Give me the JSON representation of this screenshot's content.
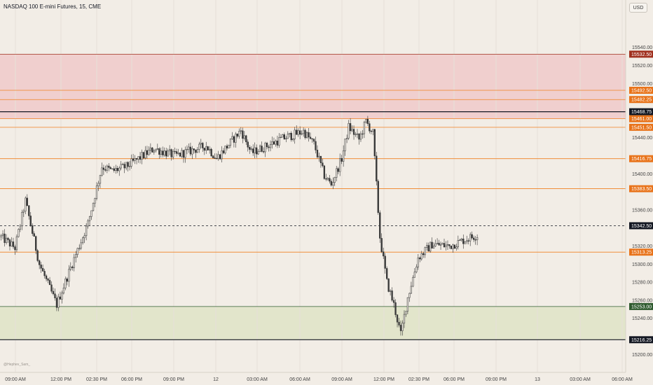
{
  "header": {
    "title": "NASDAQ 100 E-mini Futures, 15, CME",
    "currency": "USD",
    "watermark": "@Hephev_Sam_"
  },
  "colors": {
    "background": "#f2ede6",
    "supply_zone": "#f0c9c9",
    "demand_zone": "#dfe3c5",
    "orange_line": "#f08020",
    "orange_badge": "#e8731a",
    "supply_badge": "#a0301e",
    "demand_badge": "#2e5a2e",
    "black": "#131722",
    "candle_up": "#f2ede6",
    "candle_down": "#3a3a3a"
  },
  "chart_data": {
    "type": "candlestick",
    "title": "NASDAQ 100 E-mini Futures, 15, CME",
    "ylim": [
      15195,
      15550
    ],
    "y_ticks": [
      15200,
      15220,
      15240,
      15260,
      15280,
      15300,
      15320,
      15340,
      15360,
      15380,
      15400,
      15420,
      15440,
      15460,
      15480,
      15500,
      15520,
      15540
    ],
    "x_ticks": [
      "09:00 AM",
      "12:00 PM",
      "02:30 PM",
      "06:00 PM",
      "09:00 PM",
      "12",
      "03:00 AM",
      "06:00 AM",
      "09:00 AM",
      "12:00 PM",
      "02:30 PM",
      "06:00 PM",
      "09:00 PM",
      "13",
      "03:00 AM",
      "06:00 AM"
    ],
    "current_price": 15342.5,
    "zones": [
      {
        "kind": "supply",
        "from": 15461.0,
        "to": 15532.5
      },
      {
        "kind": "demand",
        "from": 15216.25,
        "to": 15253.0
      }
    ],
    "levels": [
      {
        "price": 15532.5,
        "label": "15532.50",
        "style": "supply"
      },
      {
        "price": 15492.5,
        "label": "15492.50",
        "style": "orange"
      },
      {
        "price": 15482.25,
        "label": "15482.25",
        "style": "orange"
      },
      {
        "price": 15468.75,
        "label": "15468.75",
        "style": "black"
      },
      {
        "price": 15461.0,
        "label": "15461.00",
        "style": "orange"
      },
      {
        "price": 15451.5,
        "label": "15451.50",
        "style": "orange"
      },
      {
        "price": 15416.75,
        "label": "15416.75",
        "style": "orange"
      },
      {
        "price": 15383.5,
        "label": "15383.50",
        "style": "orange"
      },
      {
        "price": 15342.5,
        "label": "15342.50",
        "style": "current"
      },
      {
        "price": 15313.25,
        "label": "15313.25",
        "style": "orange"
      },
      {
        "price": 15253.0,
        "label": "15253.00",
        "style": "demand"
      },
      {
        "price": 15216.25,
        "label": "15216.25",
        "style": "black"
      }
    ],
    "close_anchors": [
      [
        0,
        15330
      ],
      [
        8,
        15318
      ],
      [
        14,
        15370
      ],
      [
        22,
        15300
      ],
      [
        32,
        15255
      ],
      [
        40,
        15296
      ],
      [
        50,
        15345
      ],
      [
        58,
        15408
      ],
      [
        64,
        15403
      ],
      [
        72,
        15408
      ],
      [
        88,
        15428
      ],
      [
        100,
        15420
      ],
      [
        118,
        15431
      ],
      [
        124,
        15417
      ],
      [
        138,
        15448
      ],
      [
        144,
        15423
      ],
      [
        162,
        15439
      ],
      [
        174,
        15447
      ],
      [
        180,
        15433
      ],
      [
        186,
        15398
      ],
      [
        190,
        15388
      ],
      [
        196,
        15417
      ],
      [
        200,
        15452
      ],
      [
        206,
        15438
      ],
      [
        210,
        15458
      ],
      [
        214,
        15445
      ],
      [
        218,
        15330
      ],
      [
        222,
        15280
      ],
      [
        226,
        15255
      ],
      [
        230,
        15222
      ],
      [
        234,
        15263
      ],
      [
        240,
        15307
      ],
      [
        248,
        15322
      ],
      [
        258,
        15320
      ],
      [
        268,
        15328
      ],
      [
        274,
        15332
      ]
    ]
  }
}
